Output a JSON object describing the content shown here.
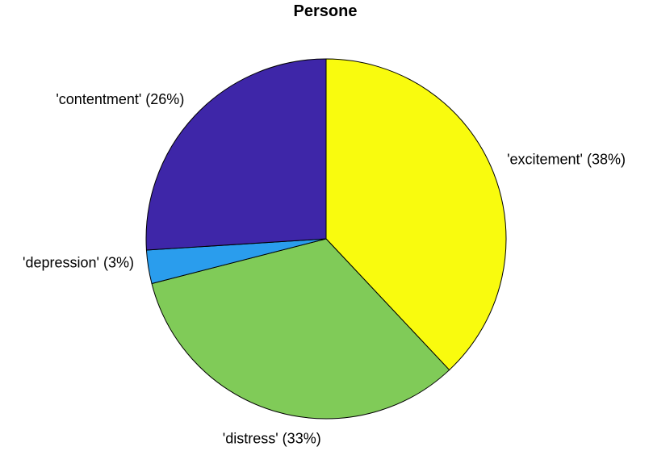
{
  "chart_data": {
    "type": "pie",
    "title": "Persone",
    "start": "top",
    "direction": "clockwise",
    "slices": [
      {
        "label": "'excitement' (38%)",
        "category": "excitement",
        "value": 38,
        "color": "#f9fb0e"
      },
      {
        "label": "'distress' (33%)",
        "category": "distress",
        "value": 33,
        "color": "#80cb58"
      },
      {
        "label": "'depression' (3%)",
        "category": "depression",
        "value": 3,
        "color": "#2a9ded"
      },
      {
        "label": "'contentment' (26%)",
        "category": "contentment",
        "value": 26,
        "color": "#3e26a8"
      }
    ]
  }
}
